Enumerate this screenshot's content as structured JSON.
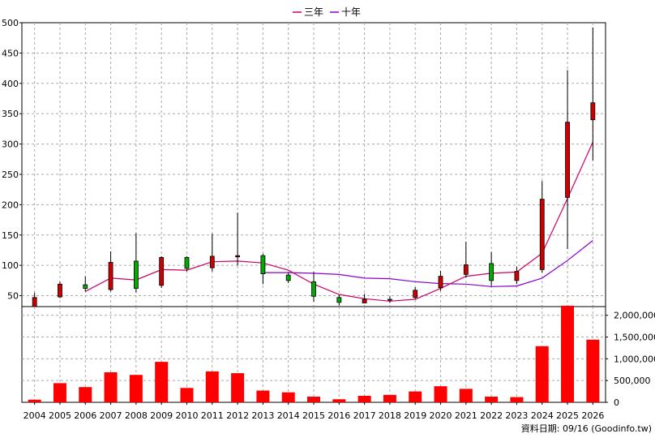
{
  "chart_data": {
    "type": "candlestick",
    "years": [
      "2004",
      "2005",
      "2006",
      "2007",
      "2008",
      "2009",
      "2010",
      "2011",
      "2012",
      "2013",
      "2014",
      "2015",
      "2016",
      "2017",
      "2018",
      "2019",
      "2020",
      "2021",
      "2022",
      "2023",
      "2024",
      "2025",
      "2026"
    ],
    "legend": [
      {
        "name": "三年",
        "color": "#cc0066"
      },
      {
        "name": "十年",
        "color": "#8800cc"
      }
    ],
    "price_axis": {
      "ticks": [
        50,
        100,
        150,
        200,
        250,
        300,
        350,
        400,
        450,
        500
      ],
      "ylim": [
        32,
        500
      ]
    },
    "volume_axis": {
      "ticks": [
        0,
        500000,
        1000000,
        1500000,
        2000000
      ],
      "tick_labels": [
        "0",
        "500,000",
        "1,000,000",
        "1,500,000",
        "2,000,000"
      ],
      "ylim": [
        0,
        2200000
      ]
    },
    "candles": [
      {
        "o": 47,
        "h": 55,
        "l": 31,
        "c": 32
      },
      {
        "o": 69,
        "h": 73,
        "l": 46,
        "c": 48
      },
      {
        "o": 62,
        "h": 82,
        "l": 57,
        "c": 68
      },
      {
        "o": 105,
        "h": 123,
        "l": 57,
        "c": 60
      },
      {
        "o": 62,
        "h": 153,
        "l": 55,
        "c": 107
      },
      {
        "o": 113,
        "h": 115,
        "l": 63,
        "c": 67
      },
      {
        "o": 95,
        "h": 115,
        "l": 90,
        "c": 113
      },
      {
        "o": 115,
        "h": 152,
        "l": 90,
        "c": 96
      },
      {
        "o": 116,
        "h": 187,
        "l": 100,
        "c": 114
      },
      {
        "o": 86,
        "h": 119,
        "l": 69,
        "c": 116
      },
      {
        "o": 75,
        "h": 88,
        "l": 71,
        "c": 84
      },
      {
        "o": 49,
        "h": 89,
        "l": 40,
        "c": 73
      },
      {
        "o": 39,
        "h": 51,
        "l": 34,
        "c": 47
      },
      {
        "o": 44,
        "h": 53,
        "l": 38,
        "c": 38
      },
      {
        "o": 43,
        "h": 49,
        "l": 38,
        "c": 44
      },
      {
        "o": 59,
        "h": 64,
        "l": 44,
        "c": 47
      },
      {
        "o": 82,
        "h": 91,
        "l": 58,
        "c": 63
      },
      {
        "o": 101,
        "h": 139,
        "l": 80,
        "c": 85
      },
      {
        "o": 75,
        "h": 122,
        "l": 66,
        "c": 103
      },
      {
        "o": 90,
        "h": 98,
        "l": 69,
        "c": 75
      },
      {
        "o": 209,
        "h": 239,
        "l": 88,
        "c": 93
      },
      {
        "o": 336,
        "h": 422,
        "l": 127,
        "c": 212
      },
      {
        "o": 368,
        "h": 492,
        "l": 273,
        "c": 340
      }
    ],
    "ma3": [
      null,
      null,
      57,
      79,
      76,
      93,
      92,
      106,
      107,
      104,
      92,
      69,
      52,
      45,
      41,
      44,
      62,
      82,
      87,
      89,
      120,
      210,
      303
    ],
    "ma10": [
      null,
      null,
      null,
      null,
      null,
      null,
      null,
      null,
      null,
      88,
      88,
      87,
      85,
      79,
      78,
      73,
      70,
      69,
      65,
      66,
      79,
      108,
      141
    ],
    "volumes": [
      60000,
      440000,
      350000,
      690000,
      630000,
      930000,
      330000,
      710000,
      670000,
      270000,
      230000,
      130000,
      70000,
      150000,
      170000,
      250000,
      370000,
      310000,
      130000,
      120000,
      1290000,
      2220000,
      1440000
    ],
    "up_color": "#cc0000",
    "down_color": "#00aa00",
    "volume_color": "#ff0000"
  },
  "footer": "資料日期: 09/16  (Goodinfo.tw)"
}
